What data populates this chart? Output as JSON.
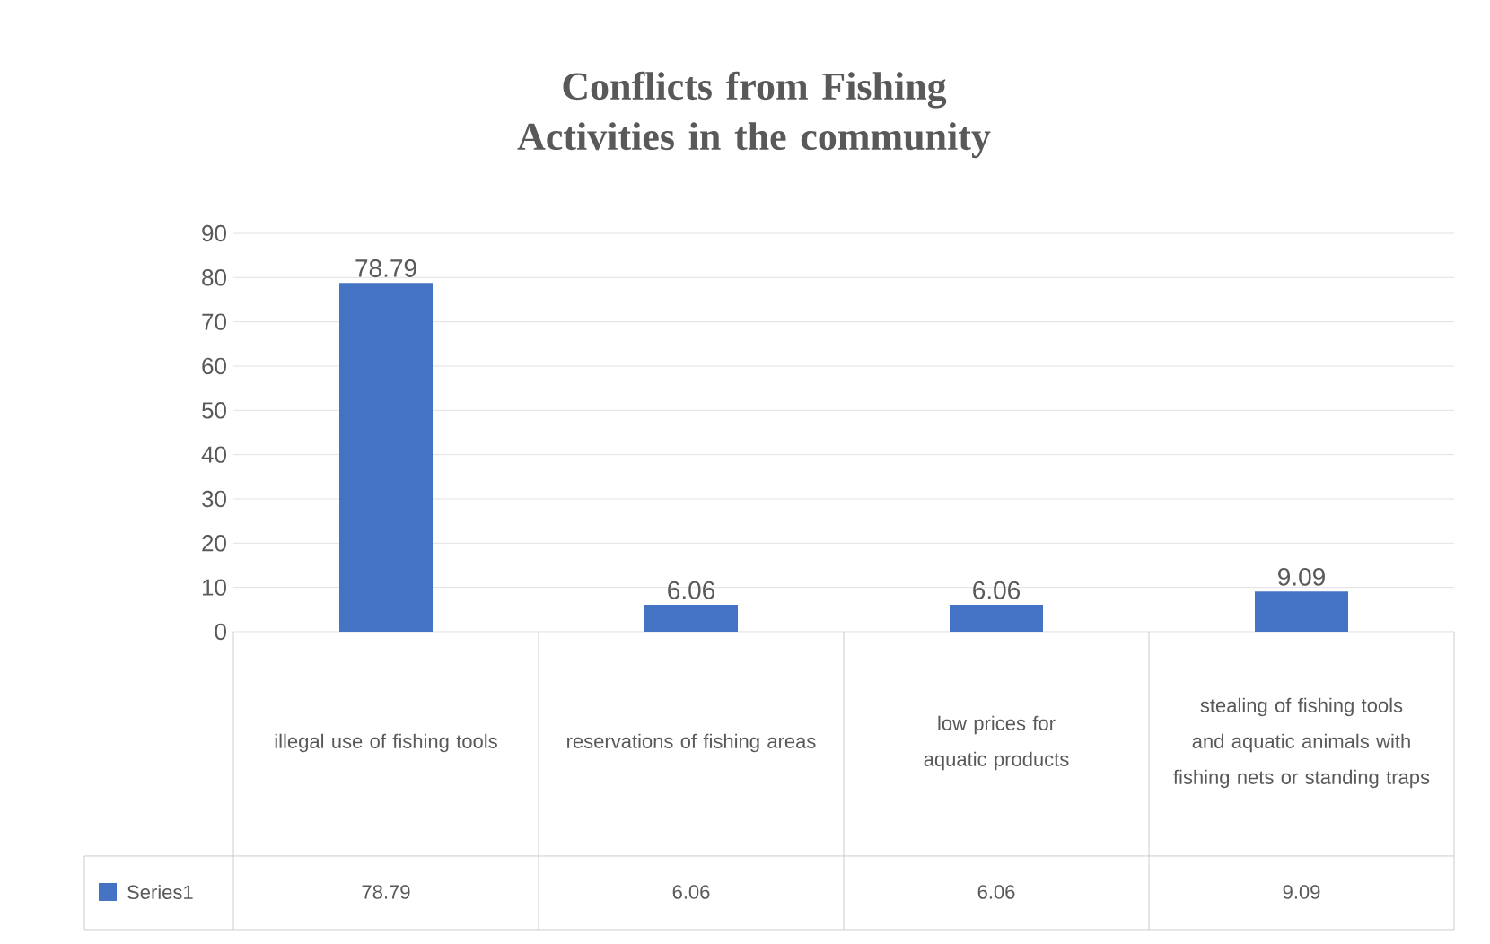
{
  "chart_data": {
    "type": "bar",
    "title": "Conflicts from Fishing Activities in the community",
    "categories": [
      "illegal use of fishing tools",
      "reservations of fishing areas",
      "low prices for aquatic products",
      "stealing of fishing tools and aquatic animals with fishing nets or standing traps"
    ],
    "series": [
      {
        "name": "Series1",
        "color": "#4472c4",
        "values": [
          78.79,
          6.06,
          6.06,
          9.09
        ],
        "value_labels": [
          "78.79",
          "6.06",
          "6.06",
          "9.09"
        ]
      }
    ],
    "ylim": [
      0,
      90
    ],
    "yticks": [
      0,
      10,
      20,
      30,
      40,
      50,
      60,
      70,
      80,
      90
    ],
    "grid": "y",
    "legend": "bottom"
  }
}
